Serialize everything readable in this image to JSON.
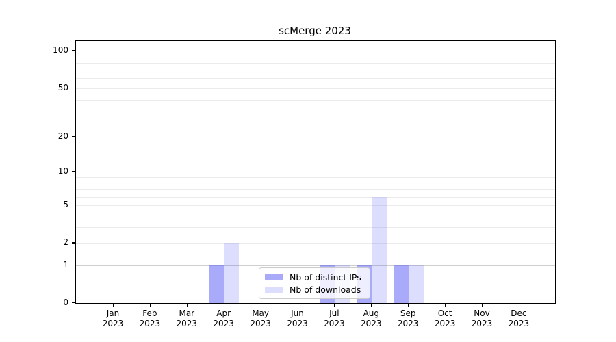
{
  "chart_data": {
    "type": "bar",
    "title": "scMerge 2023",
    "categories": [
      "Jan",
      "Feb",
      "Mar",
      "Apr",
      "May",
      "Jun",
      "Jul",
      "Aug",
      "Sep",
      "Oct",
      "Nov",
      "Dec"
    ],
    "category_year": "2023",
    "series": [
      {
        "name": "Nb of distinct IPs",
        "color": "rgba(85,85,245,0.5)",
        "values": [
          0,
          0,
          0,
          1,
          0,
          0,
          1,
          1,
          1,
          0,
          0,
          0
        ]
      },
      {
        "name": "Nb of downloads",
        "color": "rgba(85,85,245,0.2)",
        "values": [
          0,
          0,
          0,
          2,
          0,
          0,
          1,
          6,
          1,
          0,
          0,
          0
        ]
      }
    ],
    "yscale": "log10(1+x)",
    "ylim": [
      0,
      120
    ],
    "yticks": [
      0,
      1,
      2,
      5,
      10,
      20,
      50,
      100
    ],
    "minor_gridlines": [
      2,
      3,
      4,
      5,
      6,
      7,
      8,
      9,
      20,
      30,
      40,
      50,
      60,
      70,
      80,
      90
    ],
    "major_gridlines": [
      1,
      10,
      100
    ],
    "grid": true,
    "legend_position": "lower-center",
    "colors": {
      "bar_dark": "#aaacf8",
      "bar_light": "#ddddfa",
      "grid_minor": "#ebebeb",
      "grid_major": "#cfcfcf",
      "axis": "#000000",
      "legend_border": "#cccccc"
    }
  }
}
